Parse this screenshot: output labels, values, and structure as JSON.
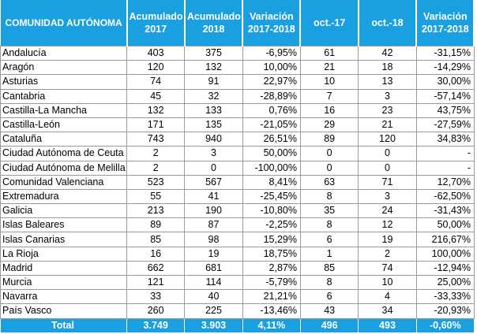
{
  "headers": [
    "COMUNIDAD AUTÓNOMA",
    "Acumulado 2017",
    "Acumulado 2018",
    "Variación 2017-2018",
    "oct.-17",
    "oct.-18",
    "Variación 2017-2018"
  ],
  "rows": [
    [
      "Andalucía",
      "403",
      "375",
      "-6,95%",
      "61",
      "42",
      "-31,15%"
    ],
    [
      "Aragón",
      "120",
      "132",
      "10,00%",
      "21",
      "18",
      "-14,29%"
    ],
    [
      "Asturias",
      "74",
      "91",
      "22,97%",
      "10",
      "13",
      "30,00%"
    ],
    [
      "Cantabria",
      "45",
      "32",
      "-28,89%",
      "7",
      "3",
      "-57,14%"
    ],
    [
      "Castilla-La Mancha",
      "132",
      "133",
      "0,76%",
      "16",
      "23",
      "43,75%"
    ],
    [
      "Castilla-León",
      "171",
      "135",
      "-21,05%",
      "29",
      "21",
      "-27,59%"
    ],
    [
      "Cataluña",
      "743",
      "940",
      "26,51%",
      "89",
      "120",
      "34,83%"
    ],
    [
      "Ciudad Autónoma de Ceuta",
      "2",
      "3",
      "50,00%",
      "0",
      "0",
      "-"
    ],
    [
      "Ciudad Autónoma de Melilla",
      "2",
      "0",
      "-100,00%",
      "0",
      "0",
      "-"
    ],
    [
      "Comunidad Valenciana",
      "523",
      "567",
      "8,41%",
      "63",
      "71",
      "12,70%"
    ],
    [
      "Extremadura",
      "55",
      "41",
      "-25,45%",
      "8",
      "3",
      "-62,50%"
    ],
    [
      "Galicia",
      "213",
      "190",
      "-10,80%",
      "35",
      "24",
      "-31,43%"
    ],
    [
      "Islas Baleares",
      "89",
      "87",
      "-2,25%",
      "8",
      "12",
      "50,00%"
    ],
    [
      "Islas Canarias",
      "85",
      "98",
      "15,29%",
      "6",
      "19",
      "216,67%"
    ],
    [
      "La Rioja",
      "16",
      "19",
      "18,75%",
      "1",
      "2",
      "100,00%"
    ],
    [
      "Madrid",
      "662",
      "681",
      "2,87%",
      "85",
      "74",
      "-12,94%"
    ],
    [
      "Murcia",
      "121",
      "114",
      "-5,79%",
      "8",
      "10",
      "25,00%"
    ],
    [
      "Navarra",
      "33",
      "40",
      "21,21%",
      "6",
      "4",
      "-33,33%"
    ],
    [
      "País Vasco",
      "260",
      "225",
      "-13,46%",
      "43",
      "34",
      "-20,93%"
    ]
  ],
  "total": [
    "Total",
    "3.749",
    "3.903",
    "4,11%",
    "496",
    "493",
    "-0,60%"
  ],
  "colors": {
    "header_bg": "#1aa0e0",
    "header_text": "#ffffff",
    "grid": "#9a9a9a"
  }
}
